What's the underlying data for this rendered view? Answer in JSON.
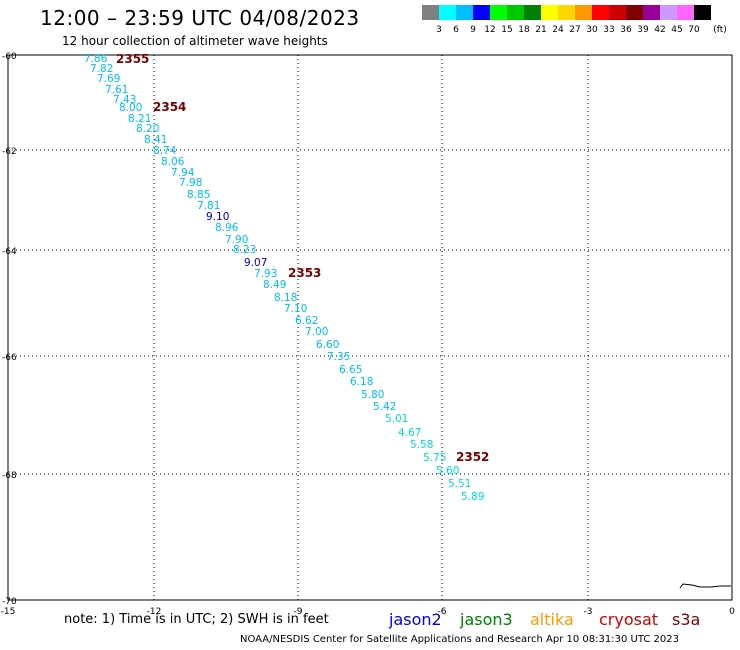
{
  "header": {
    "title": "12:00 – 23:59 UTC 04/08/2023",
    "subtitle": "12 hour collection of altimeter wave heights"
  },
  "legend": {
    "unit": "(ft)",
    "bins": [
      {
        "label": "3",
        "color": "#7f7f7f"
      },
      {
        "label": "6",
        "color": "#00ffff"
      },
      {
        "label": "9",
        "color": "#00bfff"
      },
      {
        "label": "12",
        "color": "#0000ff"
      },
      {
        "label": "15",
        "color": "#00ff00"
      },
      {
        "label": "18",
        "color": "#00c800"
      },
      {
        "label": "21",
        "color": "#008000"
      },
      {
        "label": "24",
        "color": "#ffff00"
      },
      {
        "label": "27",
        "color": "#ffd700"
      },
      {
        "label": "30",
        "color": "#ff9900"
      },
      {
        "label": "33",
        "color": "#ff0000"
      },
      {
        "label": "36",
        "color": "#cc0000"
      },
      {
        "label": "39",
        "color": "#800000"
      },
      {
        "label": "42",
        "color": "#990099"
      },
      {
        "label": "45",
        "color": "#cc99ff"
      },
      {
        "label": "70",
        "color": "#ff66ff"
      },
      {
        "label": "",
        "color": "#000000"
      }
    ]
  },
  "axes": {
    "x_ticks": [
      "-15",
      "-12",
      "-9",
      "-6",
      "-3",
      "0"
    ],
    "y_ticks": [
      "-60",
      "-62",
      "-64",
      "-66",
      "-68",
      "-70"
    ]
  },
  "track": {
    "times": [
      {
        "label": "2355",
        "color": "#7a0000"
      },
      {
        "label": "2354",
        "color": "#7a0000"
      },
      {
        "label": "2353",
        "color": "#7a0000"
      },
      {
        "label": "2352",
        "color": "#7a0000"
      }
    ],
    "observations": [
      {
        "value": "7.86",
        "color": "#00bfff"
      },
      {
        "value": "7.82",
        "color": "#00bfff"
      },
      {
        "value": "7.69",
        "color": "#00bfff"
      },
      {
        "value": "7.61",
        "color": "#00bfff"
      },
      {
        "value": "7.43",
        "color": "#00bfff"
      },
      {
        "value": "8.00",
        "color": "#00bfff"
      },
      {
        "value": "8.21",
        "color": "#00bfff"
      },
      {
        "value": "8.20",
        "color": "#00bfff"
      },
      {
        "value": "8.41",
        "color": "#00bfff"
      },
      {
        "value": "8.74",
        "color": "#00bfff"
      },
      {
        "value": "8.06",
        "color": "#00bfff"
      },
      {
        "value": "7.94",
        "color": "#00bfff"
      },
      {
        "value": "7.98",
        "color": "#00bfff"
      },
      {
        "value": "8.85",
        "color": "#00bfff"
      },
      {
        "value": "7.81",
        "color": "#00bfff"
      },
      {
        "value": "9.10",
        "color": "#0000cc"
      },
      {
        "value": "8.96",
        "color": "#00bfff"
      },
      {
        "value": "7.90",
        "color": "#00bfff"
      },
      {
        "value": "8.23",
        "color": "#00bfff"
      },
      {
        "value": "9.07",
        "color": "#0000cc"
      },
      {
        "value": "7.93",
        "color": "#00bfff"
      },
      {
        "value": "8.49",
        "color": "#00bfff"
      },
      {
        "value": "8.18",
        "color": "#00bfff"
      },
      {
        "value": "7.10",
        "color": "#00bfff"
      },
      {
        "value": "6.62",
        "color": "#00bfff"
      },
      {
        "value": "7.00",
        "color": "#00bfff"
      },
      {
        "value": "6.60",
        "color": "#00bfff"
      },
      {
        "value": "7.35",
        "color": "#00bfff"
      },
      {
        "value": "6.65",
        "color": "#00bfff"
      },
      {
        "value": "6.18",
        "color": "#00bfff"
      },
      {
        "value": "5.80",
        "color": "#00bfff"
      },
      {
        "value": "5.42",
        "color": "#00bfff"
      },
      {
        "value": "5.01",
        "color": "#00dddd"
      },
      {
        "value": "4.67",
        "color": "#00dddd"
      },
      {
        "value": "5.58",
        "color": "#00dddd"
      },
      {
        "value": "5.75",
        "color": "#00dddd"
      },
      {
        "value": "5.60",
        "color": "#00dddd"
      },
      {
        "value": "5.51",
        "color": "#00dddd"
      },
      {
        "value": "5.89",
        "color": "#00dddd"
      }
    ]
  },
  "notes": {
    "text": "note:  1) Time is in UTC; 2) SWH is in feet",
    "satellites": [
      {
        "name": "jason2",
        "color": "#0000ff"
      },
      {
        "name": "jason3",
        "color": "#008000"
      },
      {
        "name": "altika",
        "color": "#ff9900"
      },
      {
        "name": "cryosat",
        "color": "#cc0000"
      },
      {
        "name": "s3a",
        "color": "#800000"
      }
    ]
  },
  "footer": {
    "text": "NOAA/NESDIS Center for Satellite Applications and Research    Apr 10 08:31:30 UTC 2023"
  }
}
